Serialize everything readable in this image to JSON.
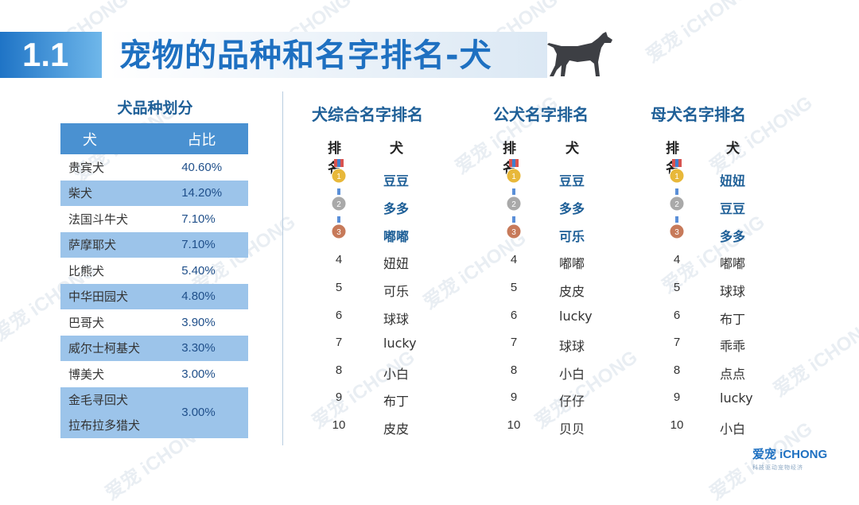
{
  "section_number": "1.1",
  "title": "宠物的品种和名字排名-犬",
  "breed_section": {
    "title": "犬品种划分",
    "headers": [
      "犬",
      "占比"
    ],
    "rows": [
      {
        "name": "贵宾犬",
        "value": "40.60%"
      },
      {
        "name": "柴犬",
        "value": "14.20%"
      },
      {
        "name": "法国斗牛犬",
        "value": "7.10%"
      },
      {
        "name": "萨摩耶犬",
        "value": "7.10%"
      },
      {
        "name": "比熊犬",
        "value": "5.40%"
      },
      {
        "name": "中华田园犬",
        "value": "4.80%"
      },
      {
        "name": "巴哥犬",
        "value": "3.90%"
      },
      {
        "name": "威尔士柯基犬",
        "value": "3.30%"
      },
      {
        "name": "博美犬",
        "value": "3.00%"
      }
    ],
    "last_row": {
      "name_line1": "金毛寻回犬",
      "name_line2": "拉布拉多猎犬",
      "value": "3.00%"
    }
  },
  "rankings": [
    {
      "title": "犬综合名字排名",
      "headers": [
        "排名",
        "犬"
      ],
      "names": [
        "豆豆",
        "多多",
        "嘟嘟",
        "妞妞",
        "可乐",
        "球球",
        "lucky",
        "小白",
        "布丁",
        "皮皮"
      ]
    },
    {
      "title": "公犬名字排名",
      "headers": [
        "排名",
        "犬"
      ],
      "names": [
        "豆豆",
        "多多",
        "可乐",
        "嘟嘟",
        "皮皮",
        "lucky",
        "球球",
        "小白",
        "仔仔",
        "贝贝"
      ]
    },
    {
      "title": "母犬名字排名",
      "headers": [
        "排名",
        "犬"
      ],
      "names": [
        "妞妞",
        "豆豆",
        "多多",
        "嘟嘟",
        "球球",
        "布丁",
        "乖乖",
        "点点",
        "lucky",
        "小白"
      ]
    }
  ],
  "rank_numbers": [
    "1",
    "2",
    "3",
    "4",
    "5",
    "6",
    "7",
    "8",
    "9",
    "10"
  ],
  "logo": {
    "main": "爱宠 iCHONG",
    "sub": "科技驱动宠物经济"
  },
  "watermark_text": "爱宠 iCHONG",
  "colors": {
    "accent_blue": "#1e70c1",
    "table_header": "#4a91d1",
    "table_alt_row": "#9cc4ea",
    "gold": "#e8b83a",
    "silver": "#a9a9a9",
    "bronze": "#c77a5a"
  },
  "icons": [
    "dog-silhouette-icon",
    "gold-medal-icon",
    "silver-medal-icon",
    "bronze-medal-icon"
  ]
}
